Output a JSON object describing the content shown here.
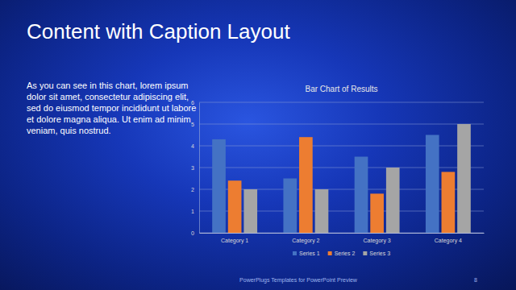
{
  "slide": {
    "title": "Content with Caption Layout",
    "caption": "As you can see in this chart, lorem ipsum dolor sit amet, consectetur adipiscing elit, sed do eiusmod tempor incididunt ut labore et dolore magna aliqua. Ut enim ad minim veniam, quis nostrud.",
    "footer": "PowerPlugs Templates for PowerPoint Preview",
    "page_number": 8
  },
  "chart_data": {
    "type": "bar",
    "title": "Bar Chart of Results",
    "categories": [
      "Category 1",
      "Category 2",
      "Category 3",
      "Category 4"
    ],
    "series": [
      {
        "name": "Series 1",
        "color": "#4472c4",
        "values": [
          4.3,
          2.5,
          3.5,
          4.5
        ]
      },
      {
        "name": "Series 2",
        "color": "#ed7d31",
        "values": [
          2.4,
          4.4,
          1.8,
          2.8
        ]
      },
      {
        "name": "Series 3",
        "color": "#a5a5a5",
        "values": [
          2,
          2,
          3,
          5
        ]
      }
    ],
    "ylim": [
      0,
      6
    ],
    "yticks": [
      0,
      1,
      2,
      3,
      4,
      5,
      6
    ],
    "grid": true,
    "legend": "bottom"
  }
}
